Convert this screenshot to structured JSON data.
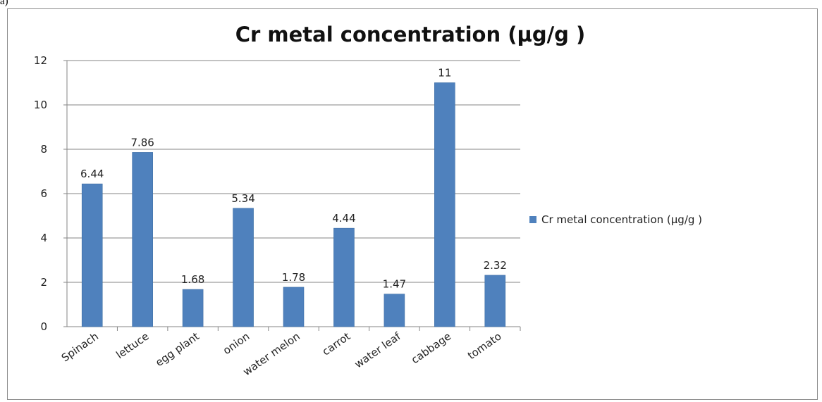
{
  "panel_tag": "a)",
  "chart_data": {
    "type": "bar",
    "title": "Cr metal concentration (µg/g )",
    "categories": [
      "Spinach",
      "lettuce",
      "egg plant",
      "onion",
      "water melon",
      "carrot",
      "water leaf",
      "cabbage",
      "tomato"
    ],
    "series": [
      {
        "name": "Cr metal concentration (µg/g )",
        "values": [
          6.44,
          7.86,
          1.68,
          5.34,
          1.78,
          4.44,
          1.47,
          11,
          2.32
        ],
        "data_labels": [
          "6.44",
          "7.86",
          "1.68",
          "5.34",
          "1.78",
          "4.44",
          "1.47",
          "11",
          "2.32"
        ],
        "color": "#4f81bd"
      }
    ],
    "xlabel": "",
    "ylabel": "",
    "ylim": [
      0,
      12
    ],
    "yticks": [
      0,
      2,
      4,
      6,
      8,
      10,
      12
    ],
    "ytick_labels": [
      "0",
      "2",
      "4",
      "6",
      "8",
      "10",
      "12"
    ],
    "grid": true,
    "legend_position": "right",
    "gridline_color": "#868686",
    "axis_color": "#868686"
  }
}
